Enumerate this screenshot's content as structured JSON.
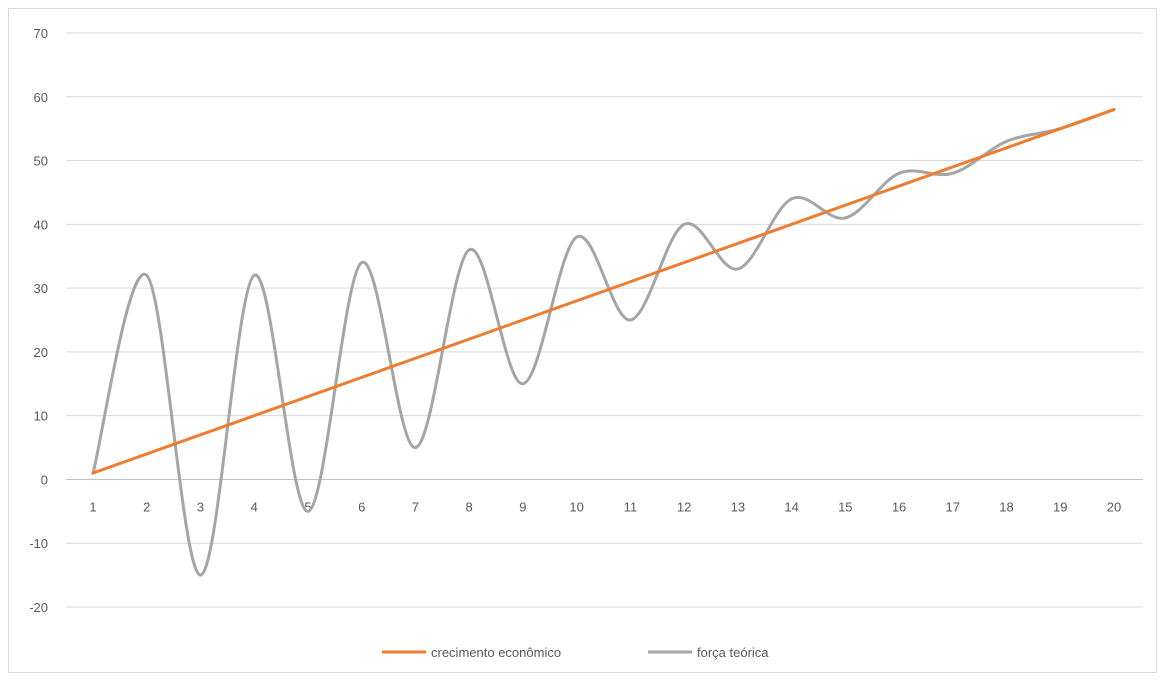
{
  "chart_data": {
    "type": "line",
    "x": [
      1,
      2,
      3,
      4,
      5,
      6,
      7,
      8,
      9,
      10,
      11,
      12,
      13,
      14,
      15,
      16,
      17,
      18,
      19,
      20
    ],
    "xlabel": "",
    "ylabel": "",
    "ylim": [
      -20,
      70
    ],
    "yticks": [
      -20,
      -10,
      0,
      10,
      20,
      30,
      40,
      50,
      60,
      70
    ],
    "grid": true,
    "legend_position": "bottom",
    "series": [
      {
        "name": "crecimento econômico",
        "color": "#ed7d31",
        "values": [
          1,
          4,
          7,
          10,
          13,
          16,
          19,
          22,
          25,
          28,
          31,
          34,
          37,
          40,
          43,
          46,
          49,
          52,
          55,
          58
        ]
      },
      {
        "name": "força teórica",
        "color": "#a5a5a5",
        "values": [
          1,
          32,
          -15,
          32,
          -5,
          34,
          5,
          36,
          15,
          38,
          25,
          40,
          33,
          44,
          41,
          48,
          48,
          53,
          55,
          58
        ]
      }
    ]
  }
}
